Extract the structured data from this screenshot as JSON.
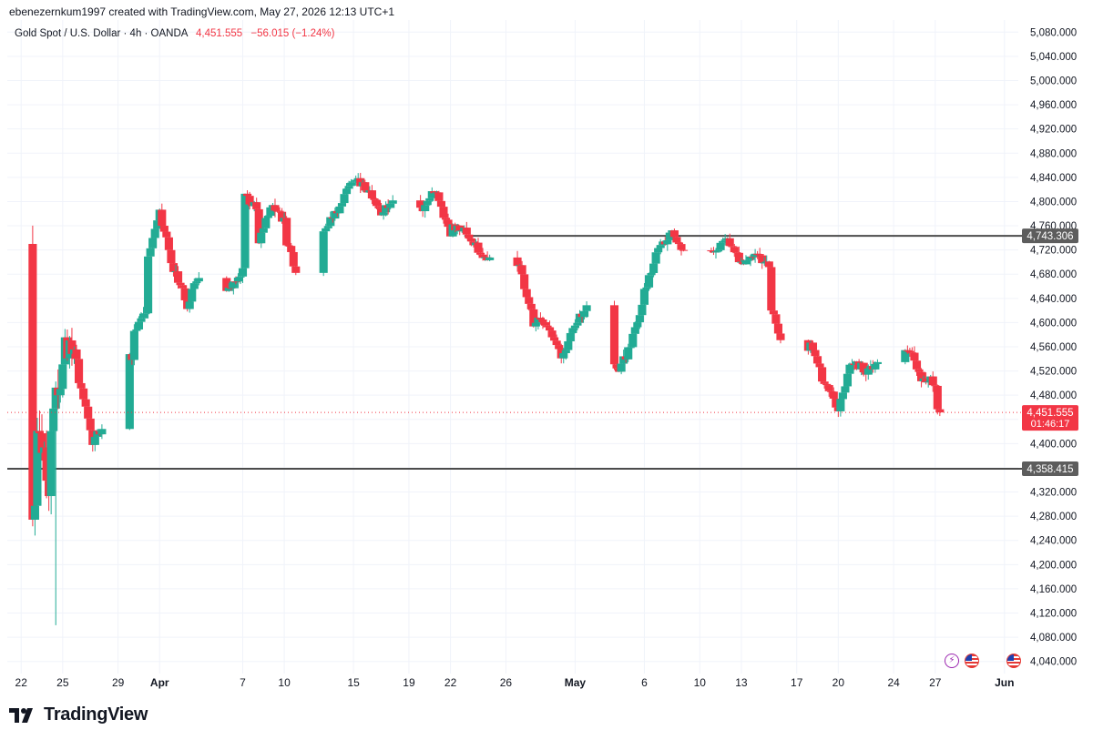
{
  "credit": "ebenezernkum1997 created with TradingView.com, May 27, 2026 12:13 UTC+1",
  "legend": {
    "symbol": "Gold Spot / U.S. Dollar · 4h · OANDA",
    "last": "4,451.555",
    "change": "−56.015 (−1.24%)"
  },
  "brand": "TradingView",
  "icons": [
    "bolt-icon",
    "us-flag-icon",
    "us-flag-icon"
  ],
  "colors": {
    "up": "#22ab94",
    "down": "#f23645",
    "level": "#4c4c4c",
    "grid": "#f0f3fa",
    "axis_text": "#131722"
  },
  "chart_data": {
    "type": "candlestick",
    "timeframe": "4h",
    "x_tick_labels": [
      "22",
      "25",
      "29",
      "Apr",
      "7",
      "10",
      "15",
      "19",
      "22",
      "26",
      "May",
      "6",
      "10",
      "13",
      "17",
      "20",
      "24",
      "27",
      "Jun"
    ],
    "x_tick_dates": [
      "2026-03-22",
      "2026-03-25",
      "2026-03-29",
      "2026-04-01",
      "2026-04-07",
      "2026-04-10",
      "2026-04-15",
      "2026-04-19",
      "2026-04-22",
      "2026-04-26",
      "2026-05-01",
      "2026-05-06",
      "2026-05-10",
      "2026-05-13",
      "2026-05-17",
      "2026-05-20",
      "2026-05-24",
      "2026-05-27",
      "2026-06-01"
    ],
    "y_tick_labels": [
      "5,080.000",
      "5,040.000",
      "5,000.000",
      "4,960.000",
      "4,920.000",
      "4,880.000",
      "4,840.000",
      "4,800.000",
      "4,760.000",
      "4,720.000",
      "4,680.000",
      "4,640.000",
      "4,600.000",
      "4,560.000",
      "4,520.000",
      "4,480.000",
      "4,440.000",
      "4,400.000",
      "4,360.000",
      "4,320.000",
      "4,280.000",
      "4,240.000",
      "4,200.000",
      "4,160.000",
      "4,120.000",
      "4,080.000",
      "4,040.000"
    ],
    "y_ticks": [
      5080,
      5040,
      5000,
      4960,
      4920,
      4880,
      4840,
      4800,
      4760,
      4720,
      4680,
      4640,
      4600,
      4560,
      4520,
      4480,
      4440,
      4400,
      4360,
      4320,
      4280,
      4240,
      4200,
      4160,
      4120,
      4080,
      4040
    ],
    "ylim": [
      4020,
      5100
    ],
    "grid": true,
    "levels": [
      {
        "value": 4743.306,
        "label": "4,743.306",
        "start_date": "2026-04-23"
      },
      {
        "value": 4358.415,
        "label": "4,358.415",
        "start_date": "2026-03-21"
      }
    ],
    "last_price": {
      "value": 4451.555,
      "label": "4,451.555",
      "countdown": "01:46:17"
    },
    "waypoints": [
      [
        "2026-03-21",
        4730
      ],
      [
        "2026-03-21",
        4690
      ],
      [
        "2026-03-22",
        4600
      ],
      [
        "2026-03-22",
        4420
      ],
      [
        "2026-03-23",
        4270
      ],
      [
        "2026-03-23",
        4460
      ],
      [
        "2026-03-24",
        4340
      ],
      [
        "2026-03-24",
        4430
      ],
      [
        "2026-03-25",
        4520
      ],
      [
        "2026-03-25",
        4570
      ],
      [
        "2026-03-26",
        4540
      ],
      [
        "2026-03-26",
        4520
      ],
      [
        "2026-03-27",
        4430
      ],
      [
        "2026-03-27",
        4390
      ],
      [
        "2026-03-28",
        4440
      ],
      [
        "2026-03-28",
        4450
      ],
      [
        "2026-03-29",
        4520
      ],
      [
        "2026-03-29",
        4560
      ],
      [
        "2026-03-30",
        4540
      ],
      [
        "2026-03-30",
        4580
      ],
      [
        "2026-03-31",
        4620
      ],
      [
        "2026-03-31",
        4700
      ],
      [
        "2026-04-01",
        4790
      ],
      [
        "2026-04-01",
        4780
      ],
      [
        "2026-04-02",
        4690
      ],
      [
        "2026-04-03",
        4630
      ],
      [
        "2026-04-04",
        4690
      ],
      [
        "2026-04-05",
        4660
      ],
      [
        "2026-04-06",
        4650
      ],
      [
        "2026-04-07",
        4690
      ],
      [
        "2026-04-07",
        4810
      ],
      [
        "2026-04-08",
        4790
      ],
      [
        "2026-04-08",
        4720
      ],
      [
        "2026-04-09",
        4790
      ],
      [
        "2026-04-10",
        4770
      ],
      [
        "2026-04-10",
        4740
      ],
      [
        "2026-04-11",
        4680
      ],
      [
        "2026-04-12",
        4740
      ],
      [
        "2026-04-13",
        4760
      ],
      [
        "2026-04-14",
        4790
      ],
      [
        "2026-04-15",
        4840
      ],
      [
        "2026-04-16",
        4820
      ],
      [
        "2026-04-17",
        4780
      ],
      [
        "2026-04-18",
        4810
      ],
      [
        "2026-04-18",
        4860
      ],
      [
        "2026-04-19",
        4810
      ],
      [
        "2026-04-20",
        4790
      ],
      [
        "2026-04-21",
        4820
      ],
      [
        "2026-04-22",
        4740
      ],
      [
        "2026-04-22",
        4760
      ],
      [
        "2026-04-23",
        4750
      ],
      [
        "2026-04-24",
        4720
      ],
      [
        "2026-04-25",
        4700
      ],
      [
        "2026-04-26",
        4720
      ],
      [
        "2026-04-27",
        4690
      ],
      [
        "2026-04-28",
        4600
      ],
      [
        "2026-04-29",
        4600
      ],
      [
        "2026-04-30",
        4540
      ],
      [
        "2026-05-01",
        4600
      ],
      [
        "2026-05-02",
        4630
      ],
      [
        "2026-05-03",
        4570
      ],
      [
        "2026-05-04",
        4520
      ],
      [
        "2026-05-05",
        4560
      ],
      [
        "2026-05-06",
        4650
      ],
      [
        "2026-05-07",
        4720
      ],
      [
        "2026-05-08",
        4750
      ],
      [
        "2026-05-09",
        4710
      ],
      [
        "2026-05-10",
        4690
      ],
      [
        "2026-05-11",
        4720
      ],
      [
        "2026-05-12",
        4740
      ],
      [
        "2026-05-13",
        4700
      ],
      [
        "2026-05-14",
        4710
      ],
      [
        "2026-05-15",
        4690
      ],
      [
        "2026-05-15",
        4640
      ],
      [
        "2026-05-16",
        4560
      ],
      [
        "2026-05-17",
        4530
      ],
      [
        "2026-05-18",
        4560
      ],
      [
        "2026-05-19",
        4500
      ],
      [
        "2026-05-20",
        4460
      ],
      [
        "2026-05-21",
        4540
      ],
      [
        "2026-05-22",
        4520
      ],
      [
        "2026-05-23",
        4530
      ],
      [
        "2026-05-24",
        4570
      ],
      [
        "2026-05-25",
        4560
      ],
      [
        "2026-05-26",
        4510
      ],
      [
        "2026-05-27",
        4500
      ],
      [
        "2026-05-27",
        4452
      ]
    ]
  }
}
